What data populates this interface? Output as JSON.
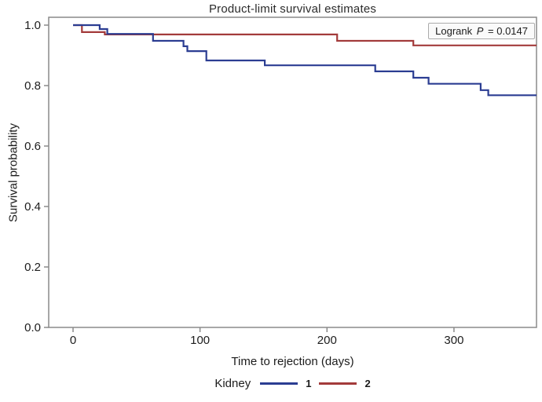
{
  "title": "Product-limit survival estimates",
  "annotation": {
    "prefix": "Logrank",
    "stat": "P",
    "value": "= 0.0147"
  },
  "legend": {
    "title": "Kidney",
    "entries": [
      {
        "label": "1",
        "color": "#2b3d92"
      },
      {
        "label": "2",
        "color": "#a33b3b"
      }
    ]
  },
  "colors": {
    "frame": "#8a8a8a",
    "tick_text": "#1c1c1c",
    "series1_blue": "#2b3d92",
    "series2_red": "#a33b3b"
  },
  "chart_data": {
    "type": "line",
    "subtype": "kaplan-meier-step",
    "title": "Product-limit survival estimates",
    "xlabel": "Time to rejection (days)",
    "ylabel": "Survival probability",
    "xlim": [
      0,
      365
    ],
    "ylim": [
      0.0,
      1.0
    ],
    "xticks": [
      0,
      100,
      200,
      300
    ],
    "yticks": [
      0.0,
      0.2,
      0.4,
      0.6,
      0.8,
      1.0
    ],
    "grid": false,
    "legend_position": "bottom",
    "legend_title": "Kidney",
    "annotation": "Logrank P = 0.0147",
    "series": [
      {
        "name": "1",
        "color": "#2b3d92",
        "end_x": 365,
        "points": [
          [
            0,
            1.0
          ],
          [
            21,
            0.987
          ],
          [
            27,
            0.971
          ],
          [
            63,
            0.948
          ],
          [
            87,
            0.93
          ],
          [
            90,
            0.914
          ],
          [
            105,
            0.883
          ],
          [
            151,
            0.867
          ],
          [
            238,
            0.847
          ],
          [
            268,
            0.826
          ],
          [
            280,
            0.806
          ],
          [
            321,
            0.785
          ],
          [
            327,
            0.768
          ]
        ]
      },
      {
        "name": "2",
        "color": "#a33b3b",
        "end_x": 365,
        "points": [
          [
            0,
            1.0
          ],
          [
            7,
            0.977
          ],
          [
            25,
            0.969
          ],
          [
            208,
            0.948
          ],
          [
            268,
            0.933
          ]
        ]
      }
    ]
  }
}
